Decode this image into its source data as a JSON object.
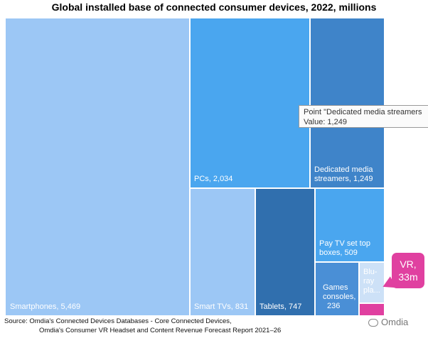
{
  "chart_data": {
    "type": "treemap",
    "title": "Global installed base of connected consumer devices, 2022, millions",
    "items": [
      {
        "label": "Smartphones",
        "value": 5469,
        "display_value": "5,469",
        "color": "#9cc7f5"
      },
      {
        "label": "PCs",
        "value": 2034,
        "display_value": "2,034",
        "color": "#4aa6ef"
      },
      {
        "label": "Dedicated media streamers",
        "value": 1249,
        "display_value": "1,249",
        "color": "#3f84c9"
      },
      {
        "label": "Smart TVs",
        "value": 831,
        "display_value": "831",
        "color": "#9cc7f5"
      },
      {
        "label": "Tablets",
        "value": 747,
        "display_value": "747",
        "color": "#306fae"
      },
      {
        "label": "Pay TV set top boxes",
        "value": 509,
        "display_value": "509",
        "color": "#4aa6ef"
      },
      {
        "label": "Games consoles",
        "value": 236,
        "display_value": "236",
        "color": "#4a8fd6"
      },
      {
        "label": "Blu-ray players",
        "value": null,
        "display_value": "",
        "color": "#cde1f7"
      },
      {
        "label": "VR",
        "value": 33,
        "display_value": "33m",
        "color": "#e040a0"
      }
    ]
  },
  "tooltip": {
    "line1": "Point \"Dedicated media streamers",
    "line2": "Value: 1,249"
  },
  "callout": {
    "line1": "VR,",
    "line2": "33m"
  },
  "source": {
    "line1": "Source: Omdia's Connected Devices Databases - Core Connected Devices,",
    "line2": "Omdia's Consumer VR Headset and Content Revenue Forecast Report 2021–26"
  },
  "watermark": "Omdia"
}
